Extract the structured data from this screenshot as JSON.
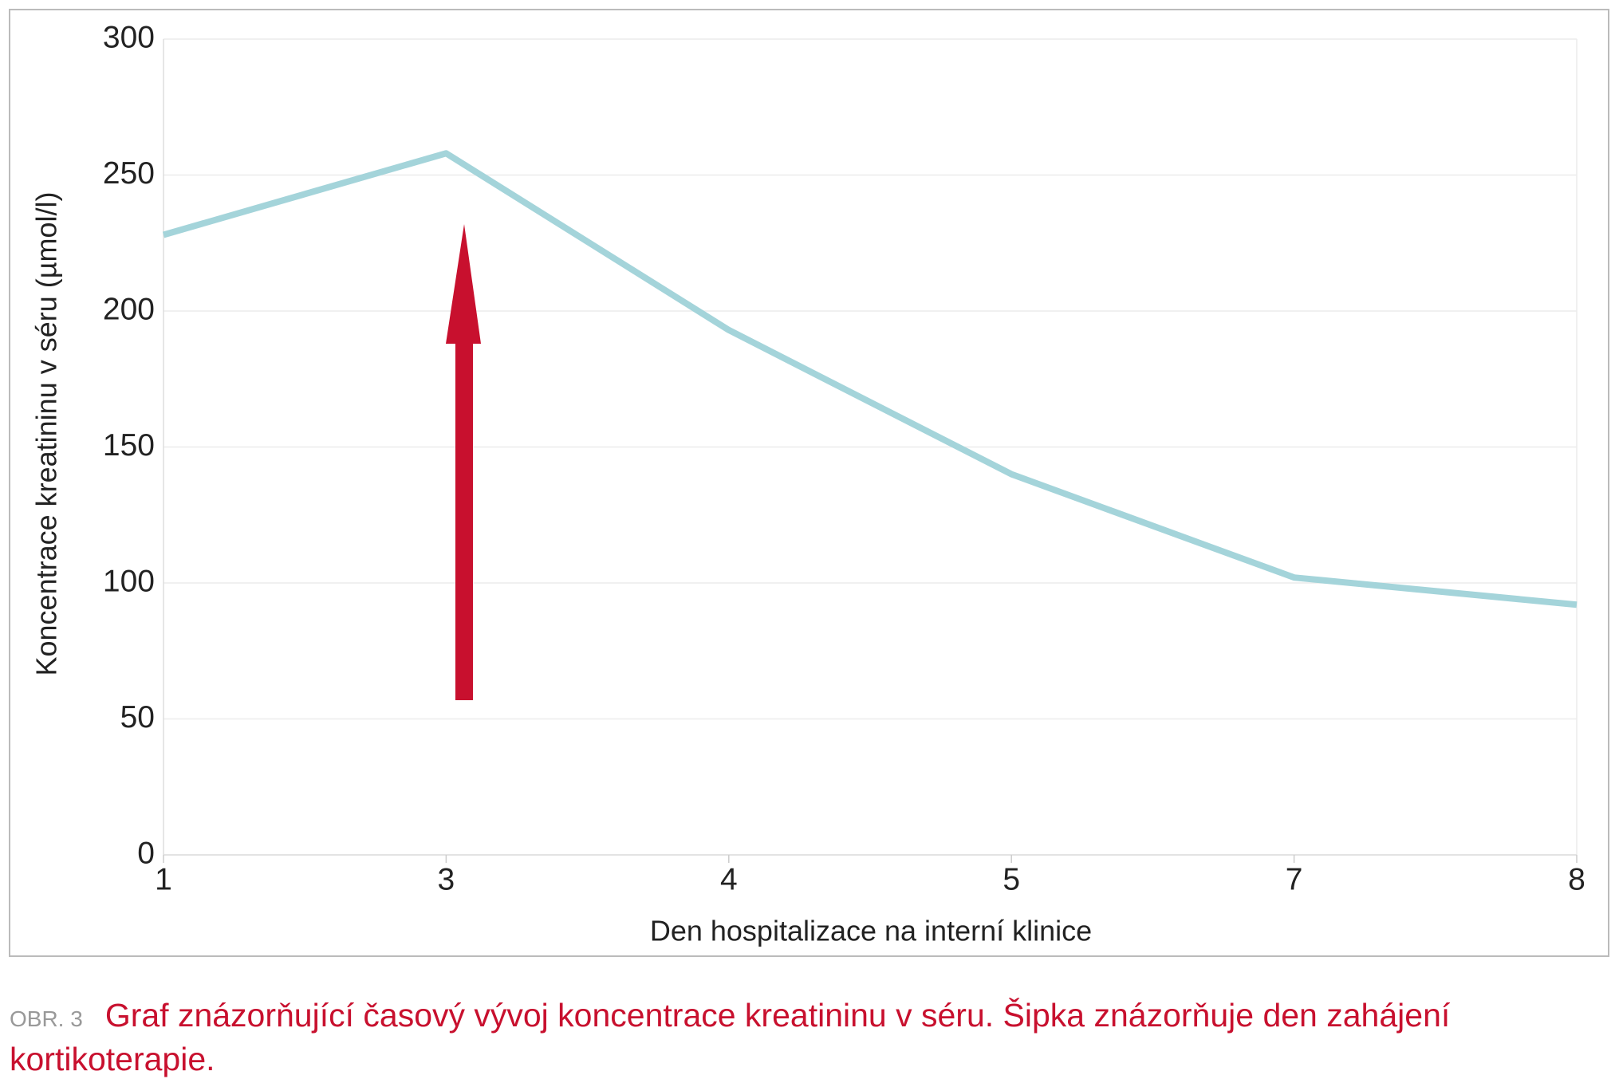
{
  "chart_data": {
    "type": "line",
    "categories": [
      "1",
      "3",
      "4",
      "5",
      "7",
      "8"
    ],
    "values": [
      228,
      258,
      193,
      140,
      102,
      92
    ],
    "color": "#a4d4da",
    "ylim": [
      0,
      300
    ],
    "yticks": [
      0,
      50,
      100,
      150,
      200,
      250,
      300
    ],
    "grid": true,
    "x_label": "Den hospitalizace na interní klinice",
    "y_label": "Koncentrace kreatininu v séru (µmol/l)"
  },
  "caption": {
    "label": "OBR. 3",
    "text": "Graf znázorňující časový vývoj koncentrace kreatininu v séru. Šipka znázorňuje den zahájení kortikoterapie."
  }
}
